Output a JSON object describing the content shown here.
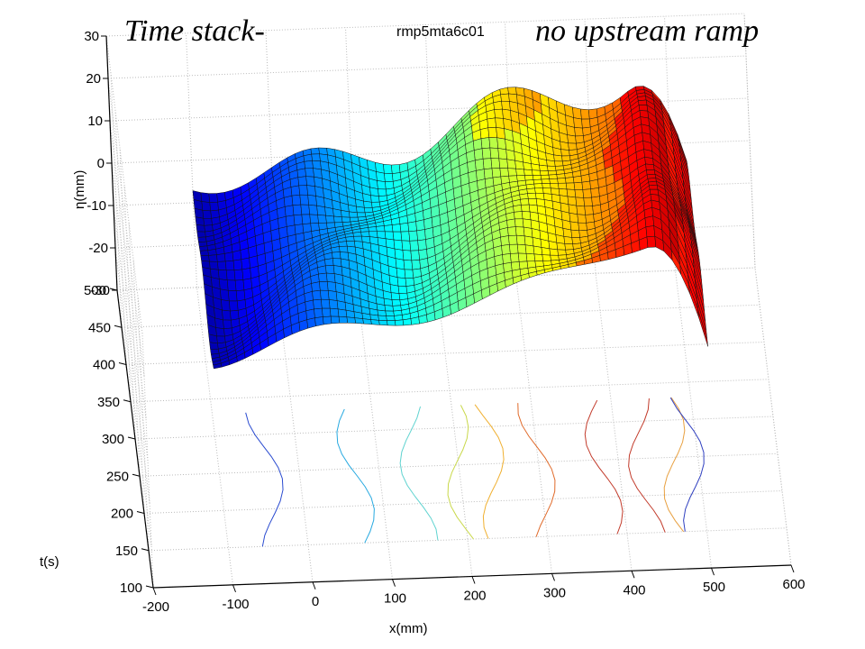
{
  "chart_data": {
    "type": "surface3d",
    "title_left": "Time stack-",
    "title_center": "rmp5mta6c01",
    "title_right": "no upstream ramp",
    "xlabel": "x(mm)",
    "ylabel": "t(s)",
    "zlabel": "η(mm)",
    "xlim": [
      -200,
      600
    ],
    "ylim": [
      100,
      500
    ],
    "zlim": [
      -30,
      30
    ],
    "x_ticks": [
      "-200",
      "-100",
      "0",
      "100",
      "200",
      "300",
      "400",
      "500",
      "600"
    ],
    "t_ticks": [
      "100",
      "150",
      "200",
      "250",
      "300",
      "350",
      "400",
      "450",
      "500"
    ],
    "z_ticks": [
      "30",
      "20",
      "10",
      "0",
      "-10",
      "-20",
      "-30"
    ],
    "grid": true,
    "colormap": "jet",
    "surface_x_range": [
      -100,
      520
    ],
    "surface_t_range": [
      270,
      500
    ],
    "contour_projection": true,
    "colors": {
      "grid": "#bbbbbb",
      "text": "#000000"
    }
  }
}
